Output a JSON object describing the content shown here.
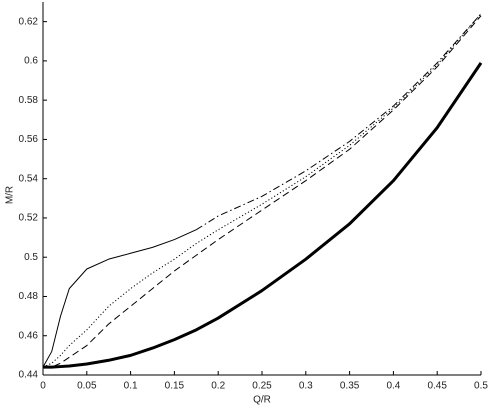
{
  "chart_data": {
    "type": "line",
    "x_label": "Q/R",
    "y_label": "M/R",
    "x": [
      0,
      0.01,
      0.02,
      0.03,
      0.05,
      0.075,
      0.1,
      0.125,
      0.15,
      0.175,
      0.2,
      0.25,
      0.3,
      0.35,
      0.4,
      0.45,
      0.5
    ],
    "series": [
      {
        "color": "#000000",
        "dash": "solid",
        "width": 1,
        "values": [
          0.444,
          0.452,
          0.47,
          0.484,
          0.494,
          0.499,
          0.502,
          0.505,
          0.509,
          0.514,
          null,
          null,
          null,
          null,
          null,
          null,
          null
        ]
      },
      {
        "color": "#000000",
        "dash": "dashdot",
        "width": 1,
        "values": [
          null,
          null,
          null,
          null,
          null,
          null,
          null,
          null,
          null,
          0.514,
          0.521,
          0.531,
          0.544,
          0.559,
          0.577,
          0.599,
          0.624
        ]
      },
      {
        "color": "#000000",
        "dash": "dotted",
        "width": 1,
        "values": [
          0.444,
          0.446,
          0.45,
          0.455,
          0.463,
          0.475,
          0.484,
          0.492,
          0.499,
          0.507,
          0.514,
          0.527,
          0.541,
          0.557,
          0.576,
          0.598,
          0.624
        ]
      },
      {
        "color": "#000000",
        "dash": "dashed",
        "width": 1,
        "values": [
          0.444,
          0.444,
          0.446,
          0.449,
          0.455,
          0.466,
          0.475,
          0.484,
          0.493,
          0.501,
          0.509,
          0.524,
          0.539,
          0.555,
          0.575,
          0.597,
          0.623
        ]
      },
      {
        "color": "#000000",
        "dash": "solid",
        "width": 3,
        "values": [
          0.444,
          0.444,
          0.4443,
          0.4446,
          0.4456,
          0.4475,
          0.45,
          0.4537,
          0.458,
          0.463,
          0.469,
          0.483,
          0.499,
          0.517,
          0.539,
          0.566,
          0.599
        ]
      }
    ],
    "xlim": [
      0,
      0.5
    ],
    "ylim": [
      0.44,
      0.63
    ],
    "xticks": [
      0,
      0.05,
      0.1,
      0.15,
      0.2,
      0.25,
      0.3,
      0.35,
      0.4,
      0.45,
      0.5
    ],
    "yticks": [
      0.44,
      0.46,
      0.48,
      0.5,
      0.52,
      0.54,
      0.56,
      0.58,
      0.6,
      0.62
    ],
    "grid": false
  }
}
